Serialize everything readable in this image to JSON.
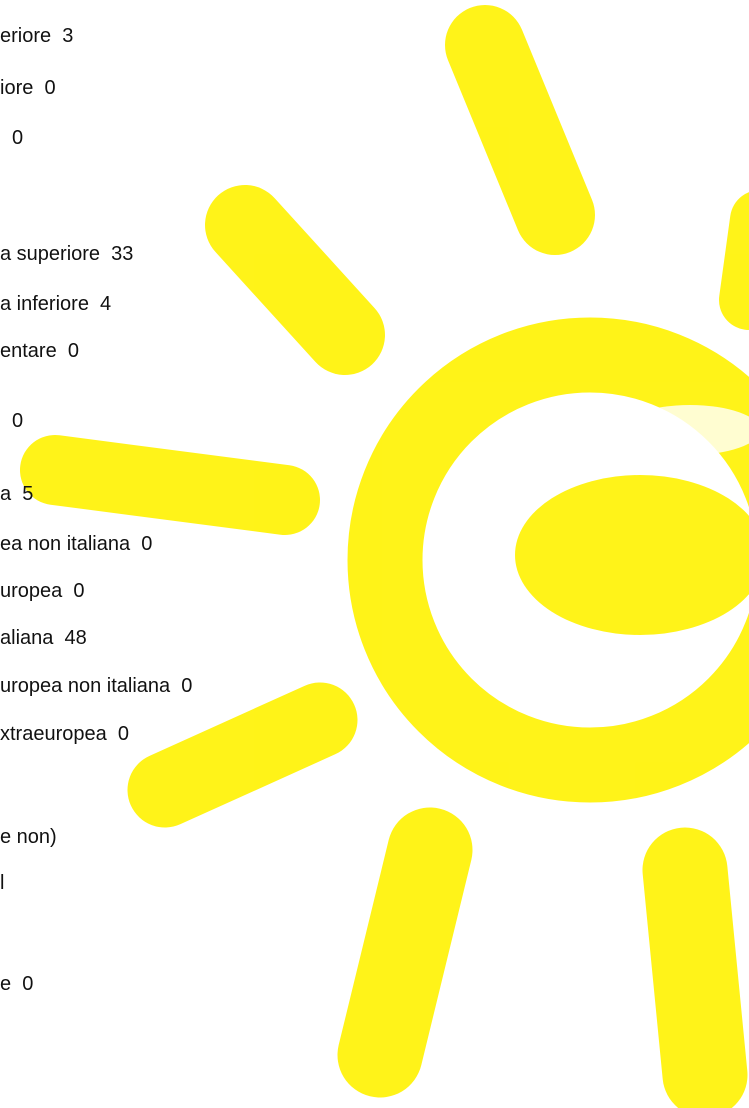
{
  "lines": [
    "eriore  3",
    "iore  0",
    "0",
    "a superiore  33",
    "a inferiore  4",
    "entare  0",
    "0",
    "a  5",
    "ea non italiana  0",
    "uropea  0",
    "aliana  48",
    "uropea non italiana  0",
    "xtraeuropea  0",
    "e non)",
    "l",
    "e  0"
  ]
}
